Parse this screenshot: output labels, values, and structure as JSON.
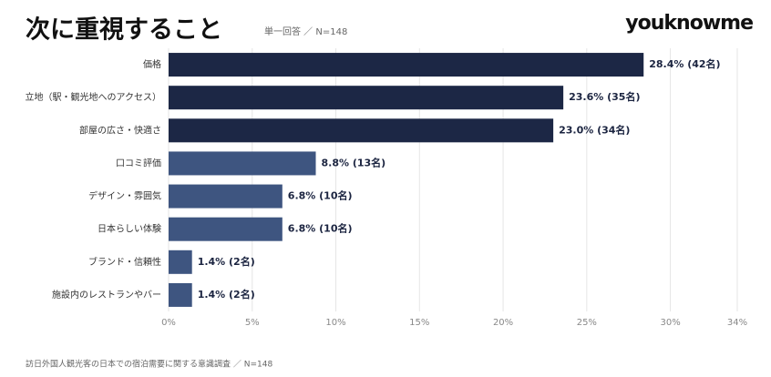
{
  "chart_data": {
    "type": "barh",
    "title": "次に重視すること",
    "subtitle": "単一回答 ／ N=148",
    "logo": "youknowme",
    "source": "訪日外国人観光客の日本での宿泊需要に関する意識調査 ／ N=148",
    "categories": [
      "価格",
      "立地（駅・観光地へのアクセス）",
      "部屋の広さ・快適さ",
      "口コミ評価",
      "デザイン・雰囲気",
      "日本らしい体験",
      "ブランド・信頼性",
      "施設内のレストランやバー"
    ],
    "values": [
      28.4,
      23.6,
      23.0,
      8.8,
      6.8,
      6.8,
      1.4,
      1.4
    ],
    "value_labels": [
      "28.4% (42名)",
      "23.6% (35名)",
      "23.0% (34名)",
      "8.8% (13名)",
      "6.8% (10名)",
      "6.8% (10名)",
      "1.4% (2名)",
      "1.4% (2名)"
    ],
    "colors": [
      "#1c2745",
      "#1c2745",
      "#1c2745",
      "#3e5580",
      "#3e5580",
      "#3e5580",
      "#3e5580",
      "#3e5580"
    ],
    "xlim": [
      0,
      34
    ],
    "xticks": [
      {
        "value": 0,
        "label": "0%"
      },
      {
        "value": 5,
        "label": "5%"
      },
      {
        "value": 10,
        "label": "10%"
      },
      {
        "value": 15,
        "label": "15%"
      },
      {
        "value": 20,
        "label": "20%"
      },
      {
        "value": 25,
        "label": "25%"
      },
      {
        "value": 30,
        "label": "30%"
      },
      {
        "value": 34,
        "label": "34%"
      }
    ],
    "grid": true
  }
}
